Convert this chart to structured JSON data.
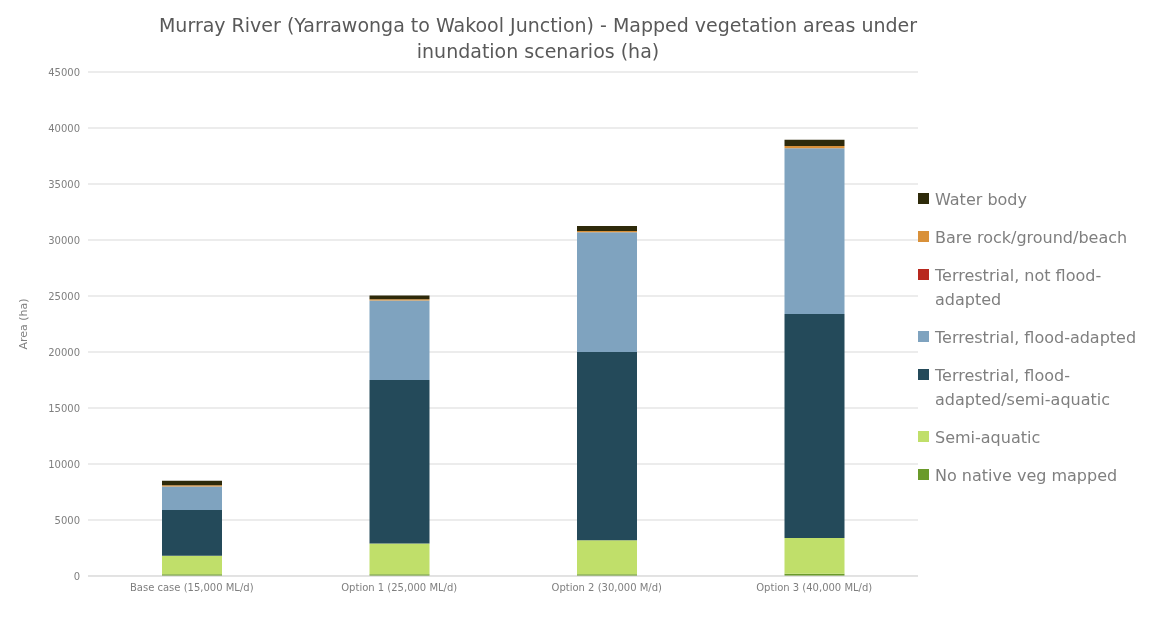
{
  "chart_data": {
    "type": "bar",
    "stacked": true,
    "title": "Murray River (Yarrawonga to Wakool Junction) - Mapped vegetation areas under inundation scenarios (ha)",
    "ylabel": "Area (ha)",
    "categories": [
      "Base case (15,000 ML/d)",
      "Option 1 (25,000 ML/d)",
      "Option 2 (30,000 M/d)",
      "Option 3 (40,000 ML/d)"
    ],
    "series": [
      {
        "name": "No native veg mapped",
        "color": "#6a9a2a",
        "values": [
          150,
          150,
          150,
          200
        ]
      },
      {
        "name": "Semi-aquatic",
        "color": "#c0df6a",
        "values": [
          1650,
          2750,
          3050,
          3200
        ]
      },
      {
        "name": "Terrestrial, flood-adapted/semi-aquatic",
        "color": "#244a5a",
        "values": [
          4100,
          14600,
          16800,
          20000
        ]
      },
      {
        "name": "Terrestrial, flood-adapted",
        "color": "#7fa3bf",
        "values": [
          2100,
          7100,
          10700,
          14800
        ]
      },
      {
        "name": "Terrestrial, not flood-adapted",
        "color": "#b8281e",
        "values": [
          null,
          null,
          null,
          null
        ]
      },
      {
        "name": "Bare rock/ground/beach",
        "color": "#d9913a",
        "values": [
          100,
          100,
          100,
          200
        ]
      },
      {
        "name": "Water body",
        "color": "#2e2a0a",
        "values": [
          400,
          350,
          450,
          550
        ]
      }
    ],
    "ylim": [
      0,
      45000
    ],
    "yticks": [
      0,
      5000,
      10000,
      15000,
      20000,
      25000,
      30000,
      35000,
      40000,
      45000
    ],
    "grid": "y",
    "legend": "right"
  }
}
